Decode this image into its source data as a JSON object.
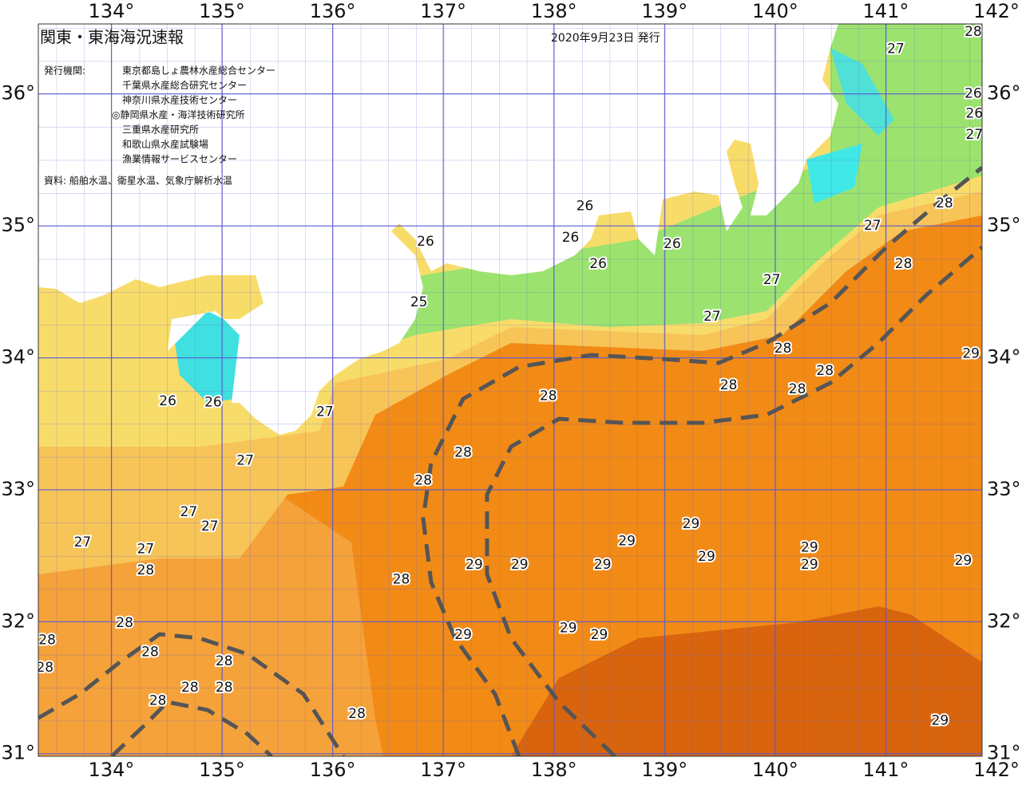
{
  "header": {
    "title": "関東・東海海況速報",
    "issued": "2020年9月23日 発行",
    "agency_label": "発行機関:",
    "agencies": [
      "東京都島しょ農林水産総合センター",
      "千葉県水産総合研究センター",
      "神奈川県水産技術センター",
      "◎静岡県水産・海洋技術研究所",
      "三重県水産研究所",
      "和歌山県水産試験場",
      "漁業情報サービスセンター"
    ],
    "source": "資料: 船舶水温、衛星水温、気象庁解析水温"
  },
  "map": {
    "lon_range": [
      133.34,
      141.87
    ],
    "lat_range": [
      30.98,
      36.53
    ],
    "lon_ticks": [
      {
        "value": 134,
        "label": "134°"
      },
      {
        "value": 135,
        "label": "135°"
      },
      {
        "value": 136,
        "label": "136°"
      },
      {
        "value": 137,
        "label": "137°"
      },
      {
        "value": 138,
        "label": "138°"
      },
      {
        "value": 139,
        "label": "139°"
      },
      {
        "value": 140,
        "label": "140°"
      },
      {
        "value": 141,
        "label": "141°"
      },
      {
        "value": 142,
        "label": "142°"
      }
    ],
    "lat_ticks": [
      {
        "value": 31,
        "label": "31°"
      },
      {
        "value": 32,
        "label": "32°"
      },
      {
        "value": 33,
        "label": "33°"
      },
      {
        "value": 34,
        "label": "34°"
      },
      {
        "value": 35,
        "label": "35°"
      },
      {
        "value": 36,
        "label": "36°"
      }
    ],
    "temperature_labels": [
      {
        "value": 27,
        "lon": 141.09,
        "lat": 36.34
      },
      {
        "value": 28,
        "lon": 141.79,
        "lat": 36.47
      },
      {
        "value": 26,
        "lon": 141.79,
        "lat": 36.0
      },
      {
        "value": 26,
        "lon": 141.8,
        "lat": 35.85
      },
      {
        "value": 27,
        "lon": 141.8,
        "lat": 35.69
      },
      {
        "value": 26,
        "lon": 138.28,
        "lat": 35.15
      },
      {
        "value": 26,
        "lon": 138.15,
        "lat": 34.91
      },
      {
        "value": 26,
        "lon": 138.4,
        "lat": 34.71
      },
      {
        "value": 26,
        "lon": 139.07,
        "lat": 34.86
      },
      {
        "value": 26,
        "lon": 136.84,
        "lat": 34.88
      },
      {
        "value": 25,
        "lon": 136.78,
        "lat": 34.42
      },
      {
        "value": 27,
        "lon": 140.88,
        "lat": 35.0
      },
      {
        "value": 27,
        "lon": 139.97,
        "lat": 34.59
      },
      {
        "value": 27,
        "lon": 139.43,
        "lat": 34.31
      },
      {
        "value": 28,
        "lon": 140.07,
        "lat": 34.07
      },
      {
        "value": 28,
        "lon": 140.45,
        "lat": 33.9
      },
      {
        "value": 28,
        "lon": 140.2,
        "lat": 33.76
      },
      {
        "value": 28,
        "lon": 139.58,
        "lat": 33.79
      },
      {
        "value": 28,
        "lon": 137.95,
        "lat": 33.71
      },
      {
        "value": 28,
        "lon": 141.53,
        "lat": 35.17
      },
      {
        "value": 28,
        "lon": 141.16,
        "lat": 34.71
      },
      {
        "value": 29,
        "lon": 141.77,
        "lat": 34.03
      },
      {
        "value": 26,
        "lon": 134.51,
        "lat": 33.67
      },
      {
        "value": 26,
        "lon": 134.92,
        "lat": 33.66
      },
      {
        "value": 27,
        "lon": 135.93,
        "lat": 33.59
      },
      {
        "value": 27,
        "lon": 135.21,
        "lat": 33.22
      },
      {
        "value": 28,
        "lon": 137.18,
        "lat": 33.28
      },
      {
        "value": 28,
        "lon": 136.82,
        "lat": 33.07
      },
      {
        "value": 27,
        "lon": 134.7,
        "lat": 32.83
      },
      {
        "value": 27,
        "lon": 134.89,
        "lat": 32.72
      },
      {
        "value": 27,
        "lon": 133.74,
        "lat": 32.6
      },
      {
        "value": 27,
        "lon": 134.31,
        "lat": 32.55
      },
      {
        "value": 28,
        "lon": 134.31,
        "lat": 32.39
      },
      {
        "value": 28,
        "lon": 136.62,
        "lat": 32.32
      },
      {
        "value": 29,
        "lon": 137.28,
        "lat": 32.43
      },
      {
        "value": 29,
        "lon": 137.69,
        "lat": 32.43
      },
      {
        "value": 29,
        "lon": 138.44,
        "lat": 32.43
      },
      {
        "value": 29,
        "lon": 138.66,
        "lat": 32.61
      },
      {
        "value": 29,
        "lon": 139.24,
        "lat": 32.74
      },
      {
        "value": 29,
        "lon": 139.38,
        "lat": 32.49
      },
      {
        "value": 29,
        "lon": 140.31,
        "lat": 32.56
      },
      {
        "value": 29,
        "lon": 140.31,
        "lat": 32.43
      },
      {
        "value": 29,
        "lon": 141.7,
        "lat": 32.46
      },
      {
        "value": 28,
        "lon": 134.12,
        "lat": 31.99
      },
      {
        "value": 28,
        "lon": 133.42,
        "lat": 31.86
      },
      {
        "value": 28,
        "lon": 133.4,
        "lat": 31.65
      },
      {
        "value": 28,
        "lon": 134.35,
        "lat": 31.77
      },
      {
        "value": 28,
        "lon": 135.02,
        "lat": 31.7
      },
      {
        "value": 28,
        "lon": 134.71,
        "lat": 31.5
      },
      {
        "value": 28,
        "lon": 135.02,
        "lat": 31.5
      },
      {
        "value": 28,
        "lon": 134.42,
        "lat": 31.4
      },
      {
        "value": 28,
        "lon": 136.22,
        "lat": 31.3
      },
      {
        "value": 29,
        "lon": 137.18,
        "lat": 31.9
      },
      {
        "value": 29,
        "lon": 138.13,
        "lat": 31.95
      },
      {
        "value": 29,
        "lon": 138.41,
        "lat": 31.9
      },
      {
        "value": 29,
        "lon": 141.49,
        "lat": 31.25
      }
    ]
  }
}
